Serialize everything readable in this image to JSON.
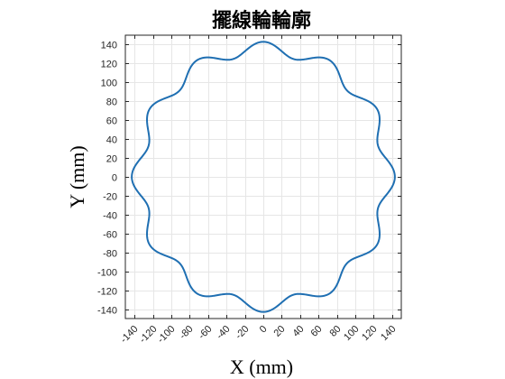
{
  "chart_data": {
    "type": "line",
    "title": "擺線輪輪廓",
    "xlabel": "X (mm)",
    "ylabel": "Y (mm)",
    "xlim": [
      -150,
      150
    ],
    "ylim": [
      -150,
      150
    ],
    "xticks": [
      -140,
      -120,
      -100,
      -80,
      -60,
      -40,
      -20,
      0,
      20,
      40,
      60,
      80,
      100,
      120,
      140
    ],
    "yticks": [
      -140,
      -120,
      -100,
      -80,
      -60,
      -40,
      -20,
      0,
      20,
      40,
      60,
      80,
      100,
      120,
      140
    ],
    "grid": true,
    "line_color": "#1f6fb2",
    "curve": {
      "shape": "cycloid-gear-profile",
      "lobes": 12,
      "r_max": 143,
      "r_min": 129,
      "lobe_peak_angle_deg": 0
    }
  }
}
